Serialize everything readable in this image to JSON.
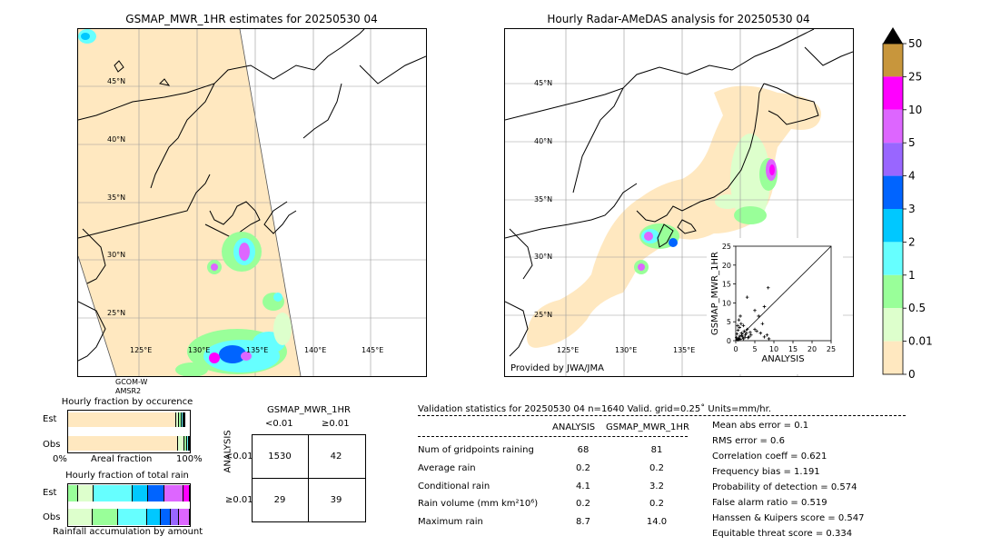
{
  "left_map": {
    "title": "GSMAP_MWR_1HR estimates for 20250530 04",
    "lat_labels": [
      "45°N",
      "40°N",
      "35°N",
      "30°N",
      "25°N"
    ],
    "lon_labels": [
      "125°E",
      "130°E",
      "135°E",
      "140°E",
      "145°E"
    ],
    "sensor_labels": [
      "GCOM-W",
      "AMSR2"
    ]
  },
  "right_map": {
    "title": "Hourly Radar-AMeDAS analysis for 20250530 04",
    "lat_labels": [
      "45°N",
      "40°N",
      "35°N",
      "30°N",
      "25°N"
    ],
    "lon_labels": [
      "125°E",
      "130°E",
      "135°E"
    ],
    "credit": "Provided by JWA/JMA"
  },
  "colorbar": {
    "labels": [
      "50",
      "25",
      "10",
      "5",
      "4",
      "3",
      "2",
      "1",
      "0.5",
      "0.01",
      "0"
    ],
    "colors": [
      "#c8963c",
      "#ff00ff",
      "#dd66ff",
      "#9966ff",
      "#0064ff",
      "#00c8ff",
      "#66ffff",
      "#99ff99",
      "#ddffcc",
      "#ffe8c0"
    ]
  },
  "chart_data": [
    {
      "type": "scatter",
      "title": "",
      "xlabel": "ANALYSIS",
      "ylabel": "GSMAP_MWR_1HR",
      "xlim": [
        0,
        25
      ],
      "ylim": [
        0,
        25
      ],
      "x_ticks": [
        "0",
        "5",
        "10",
        "15",
        "20",
        "25"
      ],
      "y_ticks": [
        "0",
        "5",
        "10",
        "15",
        "20",
        "25"
      ],
      "points": [
        [
          0.5,
          0.2
        ],
        [
          0.8,
          0.6
        ],
        [
          1.0,
          1.2
        ],
        [
          1.2,
          0.4
        ],
        [
          1.5,
          2.0
        ],
        [
          1.8,
          1.0
        ],
        [
          2.0,
          0.5
        ],
        [
          2.2,
          2.5
        ],
        [
          2.5,
          1.5
        ],
        [
          3.0,
          3.0
        ],
        [
          3.2,
          0.8
        ],
        [
          0.3,
          1.8
        ],
        [
          0.6,
          2.8
        ],
        [
          1.0,
          3.5
        ],
        [
          1.4,
          4.5
        ],
        [
          0.8,
          5.5
        ],
        [
          1.2,
          6.5
        ],
        [
          2.0,
          4.0
        ],
        [
          2.8,
          2.0
        ],
        [
          3.5,
          1.0
        ],
        [
          4.0,
          1.5
        ],
        [
          5.0,
          3.0
        ],
        [
          5.5,
          2.5
        ],
        [
          6.5,
          2.0
        ],
        [
          7.5,
          1.0
        ],
        [
          8.2,
          1.5
        ],
        [
          8.7,
          0.5
        ],
        [
          7.0,
          4.5
        ],
        [
          6.0,
          6.5
        ],
        [
          8.5,
          14.0
        ],
        [
          3.0,
          11.5
        ],
        [
          5.0,
          8.0
        ],
        [
          7.5,
          9.0
        ],
        [
          0.4,
          0.4
        ],
        [
          0.2,
          0.8
        ],
        [
          0.9,
          0.3
        ],
        [
          1.6,
          1.4
        ],
        [
          2.4,
          0.9
        ],
        [
          0.5,
          4.0
        ],
        [
          3.8,
          2.2
        ]
      ]
    },
    {
      "type": "bar",
      "title": "Hourly fraction by occurence",
      "categories": [
        "Est",
        "Obs"
      ],
      "xlabel": "Areal fraction",
      "x_ticks": [
        "0%",
        "100%"
      ],
      "series": [
        {
          "values_est": [
            0.89,
            0.02,
            0.02,
            0.015,
            0.01,
            0.005
          ],
          "values_obs": [
            0.9,
            0.055,
            0.02,
            0.015,
            0.01
          ]
        }
      ],
      "colors_est": [
        "#ffe8c0",
        "#ddffcc",
        "#99ff99",
        "#66ffff",
        "#00c8ff",
        "#0064ff"
      ],
      "colors_obs": [
        "#ffe8c0",
        "#ddffcc",
        "#99ff99",
        "#66ffff",
        "#0064ff"
      ]
    },
    {
      "type": "bar",
      "title": "Hourly fraction of total rain",
      "categories": [
        "Est",
        "Obs"
      ],
      "xlabel": "Rainfall accumulation by amount",
      "est_fracs": [
        0.08,
        0.13,
        0.32,
        0.13,
        0.13,
        0.16,
        0.05
      ],
      "est_colors": [
        "#99ff99",
        "#ddffcc",
        "#66ffff",
        "#00c8ff",
        "#0064ff",
        "#dd66ff",
        "#ff00ff"
      ],
      "obs_fracs": [
        0.2,
        0.21,
        0.24,
        0.11,
        0.08,
        0.07,
        0.09
      ],
      "obs_colors": [
        "#ddffcc",
        "#99ff99",
        "#66ffff",
        "#00c8ff",
        "#0064ff",
        "#9966ff",
        "#dd66ff"
      ]
    },
    {
      "type": "table",
      "title": "GSMAP_MWR_1HR",
      "col_headers": [
        "<0.01",
        "≥0.01"
      ],
      "row_title": "ANALYSIS",
      "row_headers": [
        "<0.01",
        "≥0.01"
      ],
      "cells": [
        [
          "1530",
          "42"
        ],
        [
          "29",
          "39"
        ]
      ]
    }
  ],
  "validation": {
    "header": "Validation statistics for 20250530 04  n=1640 Valid. grid=0.25˚ Units=mm/hr.",
    "col_analysis": "ANALYSIS",
    "col_gsmap": "GSMAP_MWR_1HR",
    "rows": [
      {
        "label": "Num of gridpoints raining",
        "a": "68",
        "g": "81"
      },
      {
        "label": "Average rain",
        "a": "0.2",
        "g": "0.2"
      },
      {
        "label": "Conditional rain",
        "a": "4.1",
        "g": "3.2"
      },
      {
        "label": "Rain volume (mm km²10⁶)",
        "a": "0.2",
        "g": "0.2"
      },
      {
        "label": "Maximum rain",
        "a": "8.7",
        "g": "14.0"
      }
    ],
    "scores": [
      "Mean abs error =    0.1",
      "RMS error =    0.6",
      "Correlation coeff =  0.621",
      "Frequency bias =  1.191",
      "Probability of detection =  0.574",
      "False alarm ratio =  0.519",
      "Hanssen & Kuipers score =  0.547",
      "Equitable threat score =  0.334"
    ]
  }
}
